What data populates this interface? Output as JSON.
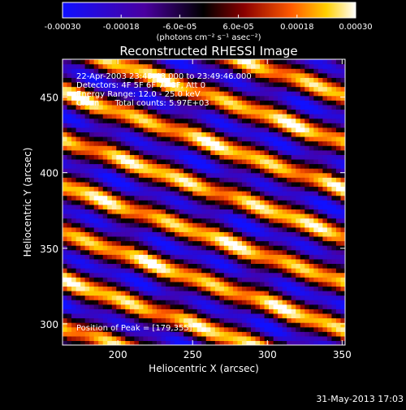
{
  "chart_data": {
    "type": "heatmap",
    "title": "Reconstructed RHESSI Image",
    "xlabel": "Heliocentric X (arcsec)",
    "ylabel": "Heliocentric Y (arcsec)",
    "xlim": [
      163,
      352
    ],
    "ylim": [
      286,
      475
    ],
    "x_ticks": [
      200,
      250,
      300,
      350
    ],
    "y_ticks": [
      300,
      350,
      400,
      450
    ],
    "colorbar": {
      "min": -0.0003,
      "max": 0.0003,
      "tick_values": [
        -0.0003,
        -0.00018,
        -6e-05,
        6e-05,
        0.00018,
        0.0003
      ],
      "tick_labels": [
        "-0.00030",
        "-0.00018",
        "-6.0e-05",
        "6.0e-05",
        "0.00018",
        "0.00030"
      ],
      "units_label": "(photons cm⁻² s⁻¹ asec⁻²)",
      "colormap_stops": [
        "#1010ff",
        "#4a00a0",
        "#000000",
        "#8a0000",
        "#ff5a00",
        "#ffd000",
        "#ffffff"
      ]
    },
    "image_model": {
      "description_of_pattern": "diagonal bright/dark fringes sloping down to the right",
      "fringe_period_arcsec": 31,
      "fringe_slope_dy_per_dx": -0.34,
      "peak_position": [
        179,
        355
      ]
    },
    "annotations": [
      "22-Apr-2003 23:43:48.000 to 23:49:46.000",
      "Detectors: 4F 5F 6F 7F 8F, Att 0",
      "Energy Range: 12.0 - 25.0 keV",
      "Clean      Total counts: 5.97E+03"
    ],
    "peak_label": "Position of Peak = [179,355]"
  },
  "footer": {
    "timestamp": "31-May-2013 17:03"
  }
}
